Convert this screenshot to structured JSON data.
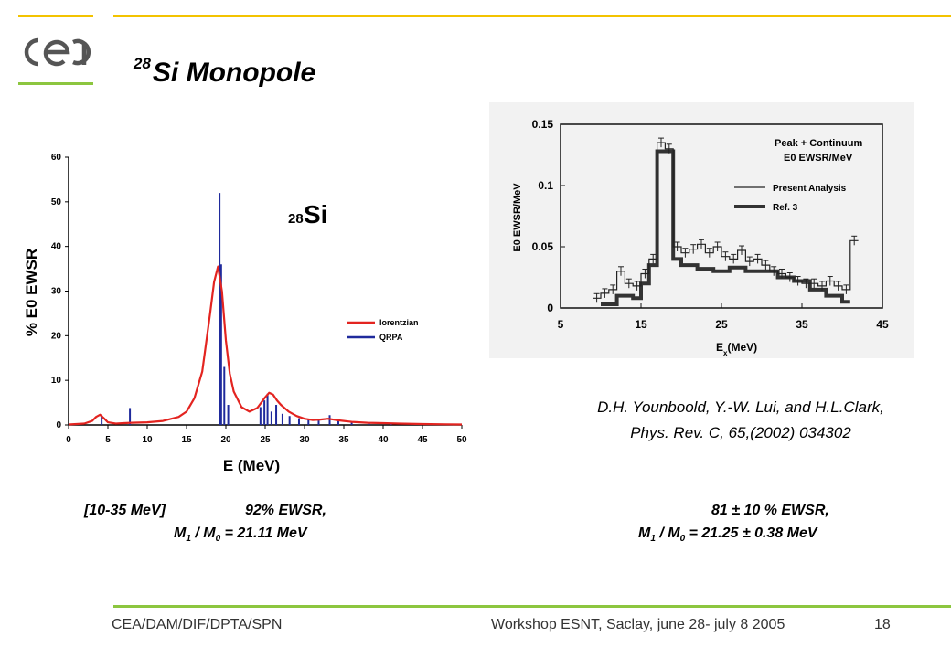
{
  "logo": {
    "text": "cea",
    "color": "#555555"
  },
  "title": {
    "superscript": "28",
    "text": "Si Monopole"
  },
  "chart_data": [
    {
      "type": "line",
      "title": "",
      "inset_label_sup": "28",
      "inset_label": "Si",
      "xlabel": "E (MeV)",
      "ylabel": "% E0 EWSR",
      "xlim": [
        0,
        50
      ],
      "ylim": [
        0,
        60
      ],
      "xticks": [
        0,
        5,
        10,
        15,
        20,
        25,
        30,
        35,
        40,
        45,
        50
      ],
      "yticks": [
        0,
        10,
        20,
        30,
        40,
        50,
        60
      ],
      "grid": false,
      "legend_position": "right",
      "series": [
        {
          "name": "lorentzian",
          "color": "#e32420",
          "x": [
            0,
            2,
            3,
            3.5,
            4,
            4.5,
            5,
            6,
            7,
            8,
            10,
            12,
            14,
            15,
            16,
            17,
            18,
            18.5,
            19,
            19.5,
            20,
            20.5,
            21,
            22,
            23,
            24,
            25,
            25.5,
            26,
            26.5,
            27,
            28,
            29,
            30,
            31,
            32,
            33,
            34,
            35,
            36,
            38,
            40,
            42,
            45,
            48,
            50
          ],
          "y": [
            0.1,
            0.3,
            0.9,
            1.8,
            2.3,
            1.5,
            0.6,
            0.3,
            0.4,
            0.5,
            0.6,
            0.9,
            1.8,
            3.0,
            6.0,
            12.0,
            25.0,
            32.0,
            35.5,
            30.0,
            19.0,
            11.5,
            7.5,
            4.0,
            3.0,
            3.8,
            6.2,
            7.2,
            6.8,
            5.5,
            4.5,
            3.0,
            2.0,
            1.4,
            1.1,
            1.2,
            1.4,
            1.1,
            0.9,
            0.7,
            0.5,
            0.4,
            0.3,
            0.2,
            0.15,
            0.1
          ]
        },
        {
          "name": "QRPA",
          "color": "#1f2a9c",
          "type": "stick",
          "x": [
            4.2,
            7.8,
            19.2,
            19.4,
            19.8,
            20.3,
            24.4,
            24.9,
            25.3,
            25.8,
            26.4,
            27.2,
            28.1,
            29.3,
            30.5,
            31.8,
            33.2,
            34.3,
            36.0,
            38.2,
            41.0,
            44.1,
            47.2
          ],
          "y": [
            2.2,
            3.8,
            52.0,
            36.0,
            13.0,
            4.5,
            4.0,
            5.5,
            7.0,
            3.0,
            4.5,
            2.5,
            2.0,
            1.5,
            1.3,
            1.0,
            2.2,
            1.2,
            0.8,
            0.6,
            0.5,
            0.4,
            0.3
          ]
        }
      ]
    },
    {
      "type": "line",
      "title": "",
      "legend_title_1": "Peak + Continuum",
      "legend_title_2": "E0  EWSR/MeV",
      "xlabel": "E",
      "xlabel_sub": "x",
      "xlabel_unit": "(MeV)",
      "ylabel": "E0 EWSR/MeV",
      "xlim": [
        5,
        45
      ],
      "ylim": [
        0,
        0.15
      ],
      "xticks": [
        5,
        15,
        25,
        35,
        45
      ],
      "yticks": [
        0,
        0.05,
        0.1,
        0.15
      ],
      "ytick_labels": [
        "0",
        "0.05",
        "0.1",
        "0.15"
      ],
      "grid": false,
      "legend_position": "top-right",
      "series": [
        {
          "name": "Present Analysis",
          "color": "#222222",
          "style": "step-thin",
          "x": [
            9,
            10,
            11,
            12,
            13,
            14,
            15,
            16,
            17,
            18,
            19,
            20,
            21,
            22,
            23,
            24,
            25,
            26,
            27,
            28,
            29,
            30,
            31,
            32,
            33,
            34,
            35,
            36,
            37,
            38,
            39,
            40,
            41
          ],
          "y": [
            0.008,
            0.012,
            0.015,
            0.03,
            0.02,
            0.018,
            0.028,
            0.04,
            0.135,
            0.13,
            0.05,
            0.045,
            0.048,
            0.052,
            0.045,
            0.05,
            0.042,
            0.04,
            0.047,
            0.038,
            0.04,
            0.035,
            0.03,
            0.028,
            0.025,
            0.022,
            0.02,
            0.02,
            0.018,
            0.022,
            0.018,
            0.015,
            0.055
          ]
        },
        {
          "name": "Ref. 3",
          "color": "#333333",
          "style": "step-thick",
          "x": [
            10,
            12,
            14,
            15,
            16,
            17,
            18,
            19,
            20,
            22,
            24,
            26,
            28,
            30,
            32,
            34,
            36,
            38,
            40
          ],
          "y": [
            0.003,
            0.01,
            0.008,
            0.02,
            0.035,
            0.128,
            0.128,
            0.04,
            0.035,
            0.032,
            0.03,
            0.033,
            0.03,
            0.03,
            0.025,
            0.022,
            0.015,
            0.01,
            0.005
          ]
        }
      ]
    }
  ],
  "reference": {
    "line1": "D.H. Younboold, Y.-W. Lui, and H.L.Clark,",
    "line2": "Phys. Rev. C, 65,(2002) 034302"
  },
  "results_left": {
    "range": "[10-35 MeV]",
    "ewsr": "92% EWSR,",
    "m_prefix": "M",
    "m_sub1": "1",
    "m_slash": " / M",
    "m_sub0": "0",
    "m_value": " = 21.11 MeV"
  },
  "results_right": {
    "ewsr": "81 ± 10 % EWSR,",
    "m_prefix": "M",
    "m_sub1": "1",
    "m_slash": " / M",
    "m_sub0": "0",
    "m_value": " = 21.25 ± 0.38 MeV"
  },
  "footer": {
    "left": "CEA/DAM/DIF/DPTA/SPN",
    "center": "Workshop ESNT, Saclay,  june 28- july 8 2005",
    "page": "18"
  }
}
